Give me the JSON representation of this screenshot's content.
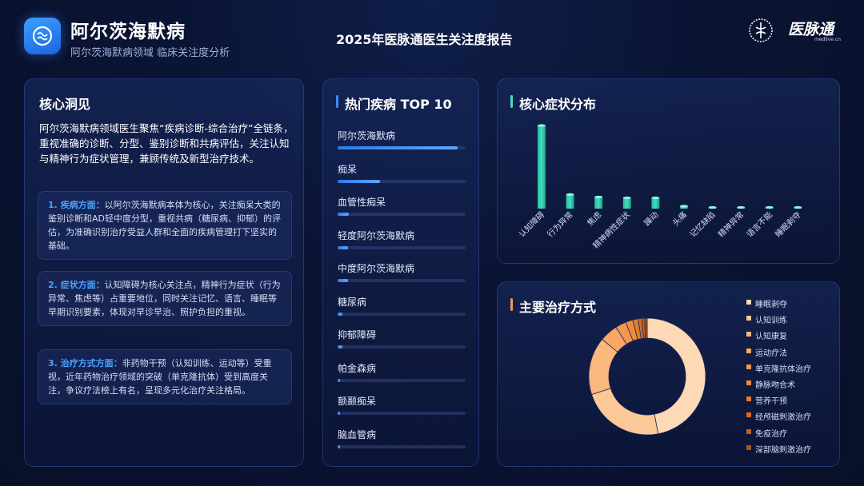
{
  "header": {
    "title": "阿尔茨海默病",
    "subtitle": "阿尔茨海默病领域 临床关注度分析",
    "report_title": "2025年医脉通医生关注度报告",
    "brand": "医脉通",
    "brand_url": "medlive.cn"
  },
  "insight": {
    "title": "核心洞见",
    "intro": "阿尔茨海默病领域医生聚焦“疾病诊断-综合治疗”全链条，重视准确的诊断、分型、鉴别诊断和共病评估，关注认知与精神行为症状管理，兼顾传统及新型治疗技术。",
    "cards": [
      {
        "heading": "1. 疾病方面：",
        "body": "以阿尔茨海默病本体为核心，关注痴呆大类的鉴别诊断和AD轻中度分型，重视共病（糖尿病、抑郁）的评估，为准确识别治疗受益人群和全面的疾病管理打下坚实的基础。"
      },
      {
        "heading": "2. 症状方面：",
        "body": "认知障碍为核心关注点，精神行为症状（行为异常、焦虑等）占重要地位，同时关注记忆、语言、睡眠等早期识别要素，体现对早诊早治、照护负担的重视。"
      },
      {
        "heading": "3. 治疗方式方面：",
        "body": "非药物干预（认知训练、运动等）受重视，近年药物治疗领域的突破（单克隆抗体）受到高度关注，争议疗法榜上有名，呈现多元化治疗关注格局。"
      }
    ]
  },
  "top10": {
    "title": "热门疾病 TOP 10",
    "items": [
      {
        "label": "阿尔茨海默病",
        "value": 94
      },
      {
        "label": "痴呆",
        "value": 33
      },
      {
        "label": "血管性痴呆",
        "value": 9
      },
      {
        "label": "轻度阿尔茨海默病",
        "value": 8
      },
      {
        "label": "中度阿尔茨海默病",
        "value": 8
      },
      {
        "label": "糖尿病",
        "value": 4
      },
      {
        "label": "抑郁障碍",
        "value": 4
      },
      {
        "label": "帕金森病",
        "value": 2
      },
      {
        "label": "额颞痴呆",
        "value": 1.5
      },
      {
        "label": "脑血管病",
        "value": 1.5
      }
    ]
  },
  "chart_data": [
    {
      "type": "bar",
      "title": "核心症状分布",
      "categories": [
        "认知障碍",
        "行为异常",
        "焦虑",
        "精神病性症状",
        "躁动",
        "头痛",
        "记忆缺陷",
        "精神异常",
        "语言不能",
        "睡眠剥夺"
      ],
      "values": [
        100,
        17,
        14,
        13,
        13,
        3,
        1,
        0.8,
        0.6,
        0.5
      ],
      "ylim": [
        0,
        100
      ],
      "grid": false,
      "color": "#3de0c0"
    },
    {
      "type": "pie",
      "title": "主要治疗方式",
      "labels": [
        "睡眠剥夺",
        "认知训练",
        "认知康复",
        "运动疗法",
        "单克隆抗体治疗",
        "静脉吻合术",
        "营养干预",
        "经颅磁刺激治疗",
        "免疫治疗",
        "深部脑刺激治疗"
      ],
      "values": [
        47,
        23,
        16,
        5,
        3,
        2,
        1.5,
        1,
        0.8,
        0.7
      ],
      "colors": [
        "#fdd9b5",
        "#fcc897",
        "#fbb87c",
        "#f9a763",
        "#f5964c",
        "#f08a3c",
        "#e57b2c",
        "#d86d22",
        "#c55f1a",
        "#b45312"
      ],
      "legend": "right"
    }
  ]
}
